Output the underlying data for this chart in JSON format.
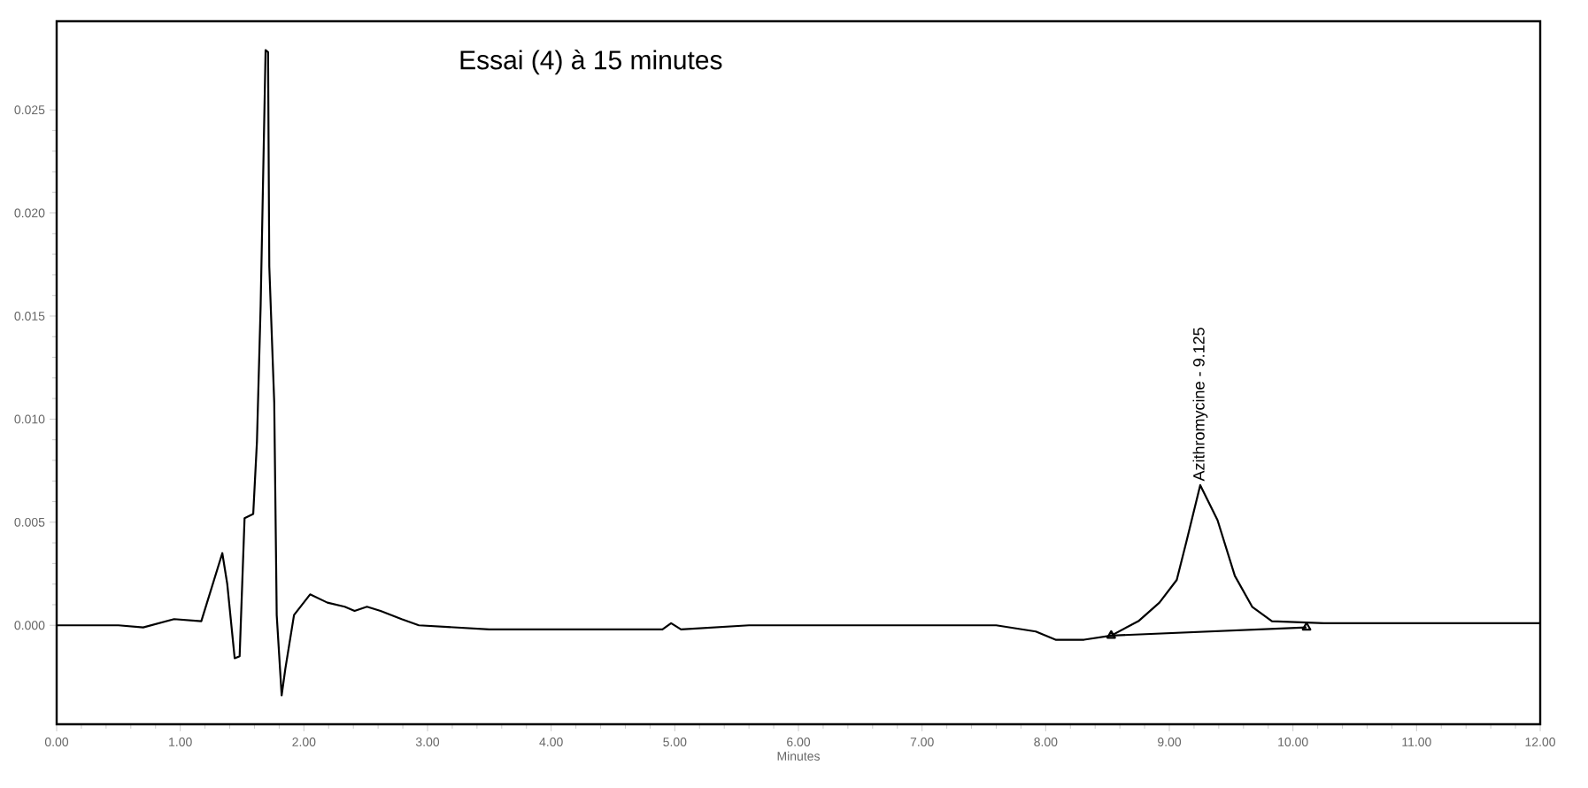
{
  "chart_data": {
    "type": "line",
    "title": "Essai (4) à 15 minutes",
    "xlabel": "Minutes",
    "x": [
      0,
      0.5,
      0.7,
      0.95,
      1.17,
      1.34,
      1.38,
      1.44,
      1.48,
      1.52,
      1.59,
      1.62,
      1.65,
      1.69,
      1.71,
      1.72,
      1.76,
      1.78,
      1.82,
      1.85,
      1.92,
      2.05,
      2.19,
      2.33,
      2.41,
      2.51,
      2.62,
      2.79,
      2.93,
      3.5,
      4.9,
      4.97,
      5.05,
      5.6,
      7.6,
      7.92,
      8.08,
      8.31,
      8.53,
      8.75,
      8.92,
      9.06,
      9.14,
      9.25,
      9.39,
      9.53,
      9.67,
      9.83,
      10.25,
      12
    ],
    "series": [
      {
        "color": "#000000",
        "values": [
          0,
          0,
          -0.0001,
          0.0003,
          0.0002,
          0.0035,
          0.002,
          -0.0016,
          -0.0015,
          0.0052,
          0.0054,
          0.0089,
          0.0155,
          0.0279,
          0.0278,
          0.0174,
          0.0108,
          0.0005,
          -0.0034,
          -0.0021,
          0.0005,
          0.0015,
          0.0011,
          0.0009,
          0.0007,
          0.0009,
          0.0007,
          0.0003,
          0,
          -0.0002,
          -0.0002,
          0.0001,
          -0.0002,
          0,
          0,
          -0.0003,
          -0.0007,
          -0.0007,
          -0.0005,
          0.0002,
          0.0011,
          0.0022,
          0.0041,
          0.0068,
          0.0051,
          0.0024,
          0.0009,
          0.0002,
          0.0001,
          0.0001
        ]
      },
      {
        "color": "#000000",
        "x": [
          8.53,
          10.11
        ],
        "values": [
          -0.0005,
          -0.0001
        ],
        "marker": "triangle"
      }
    ],
    "annotations": [
      {
        "text": "Azithromycine - 9.125",
        "x": 9.25,
        "y": 0.0068
      }
    ],
    "xlim": [
      0,
      12
    ],
    "ylim": [
      -0.0048,
      0.0293
    ],
    "xticks": [
      {
        "value": 0,
        "label": "0.00"
      },
      {
        "value": 1,
        "label": "1.00"
      },
      {
        "value": 2,
        "label": "2.00"
      },
      {
        "value": 3,
        "label": "3.00"
      },
      {
        "value": 4,
        "label": "4.00"
      },
      {
        "value": 5,
        "label": "5.00"
      },
      {
        "value": 6,
        "label": "6.00"
      },
      {
        "value": 7,
        "label": "7.00"
      },
      {
        "value": 8,
        "label": "8.00"
      },
      {
        "value": 9,
        "label": "9.00"
      },
      {
        "value": 10,
        "label": "10.00"
      },
      {
        "value": 11,
        "label": "11.00"
      },
      {
        "value": 12,
        "label": "12.00"
      }
    ],
    "yticks": [
      {
        "value": 0,
        "label": "0.000"
      },
      {
        "value": 0.005,
        "label": "0.005"
      },
      {
        "value": 0.01,
        "label": "0.010"
      },
      {
        "value": 0.015,
        "label": "0.015"
      },
      {
        "value": 0.02,
        "label": "0.020"
      },
      {
        "value": 0.025,
        "label": "0.025"
      }
    ],
    "grid": false
  }
}
